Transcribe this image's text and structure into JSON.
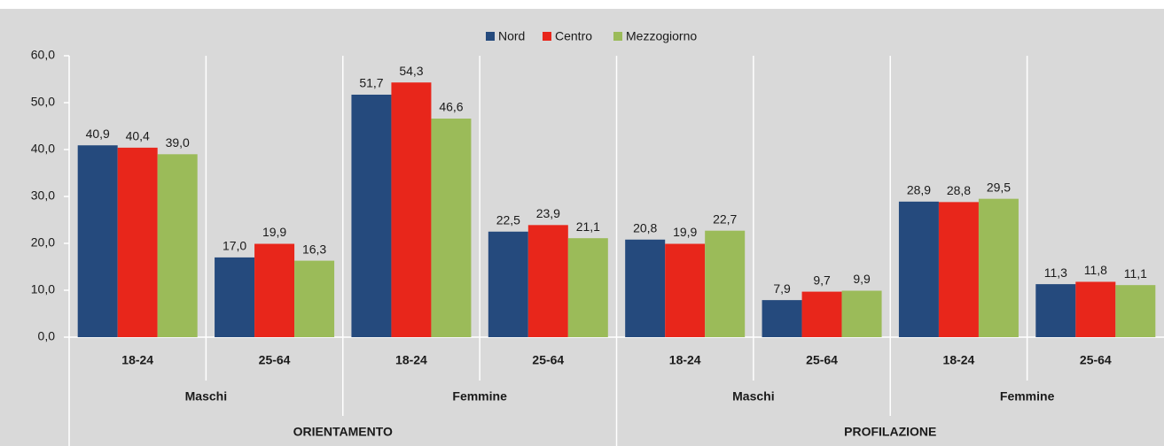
{
  "chart_data": {
    "type": "bar",
    "categories": [
      "18-24",
      "25-64",
      "18-24",
      "25-64",
      "18-24",
      "25-64",
      "18-24",
      "25-64"
    ],
    "gender_labels": [
      "Maschi",
      "Femmine",
      "Maschi",
      "Femmine"
    ],
    "section_labels": [
      "ORIENTAMENTO",
      "PROFILAZIONE"
    ],
    "series": [
      {
        "name": "Nord",
        "color": "#254a7d",
        "values": [
          40.9,
          17.0,
          51.7,
          22.5,
          20.8,
          7.9,
          28.9,
          11.3
        ],
        "value_labels": [
          "40,9",
          "17,0",
          "51,7",
          "22,5",
          "20,8",
          "7,9",
          "28,9",
          "11,3"
        ]
      },
      {
        "name": "Centro",
        "color": "#e8261b",
        "values": [
          40.4,
          19.9,
          54.3,
          23.9,
          19.9,
          9.7,
          28.8,
          11.8
        ],
        "value_labels": [
          "40,4",
          "19,9",
          "54,3",
          "23,9",
          "19,9",
          "9,7",
          "28,8",
          "11,8"
        ]
      },
      {
        "name": "Mezzogiorno",
        "color": "#9bbb59",
        "values": [
          39.0,
          16.3,
          46.6,
          21.1,
          22.7,
          9.9,
          29.5,
          11.1
        ],
        "value_labels": [
          "39,0",
          "16,3",
          "46,6",
          "21,1",
          "22,7",
          "9,9",
          "29,5",
          "11,1"
        ]
      }
    ],
    "ylim": [
      0,
      60
    ],
    "yticks": [
      {
        "value": 0,
        "label": "0,0"
      },
      {
        "value": 10,
        "label": "10,0"
      },
      {
        "value": 20,
        "label": "20,0"
      },
      {
        "value": 30,
        "label": "30,0"
      },
      {
        "value": 40,
        "label": "40,0"
      },
      {
        "value": 50,
        "label": "50,0"
      },
      {
        "value": 60,
        "label": "60,0"
      }
    ],
    "legend": "top"
  }
}
